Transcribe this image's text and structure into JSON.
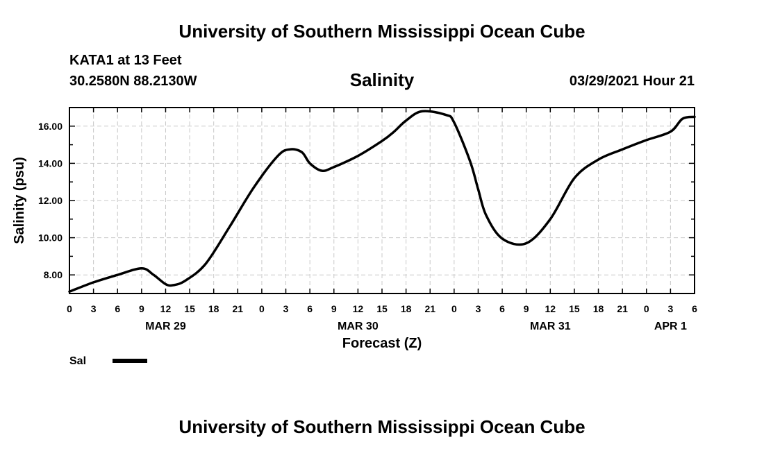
{
  "header": {
    "title": "University of Southern Mississippi Ocean Cube",
    "station": "KATA1 at 13 Feet",
    "coords": "30.2580N  88.2130W",
    "subtitle": "Salinity",
    "timestamp": "03/29/2021 Hour 21"
  },
  "footer": {
    "title": "University of Southern Mississippi Ocean Cube"
  },
  "colors": {
    "line": "#000000",
    "grid": "#c8c8c8",
    "axis": "#000000"
  },
  "chart_data": {
    "type": "line",
    "title": "Salinity",
    "xlabel": "Forecast (Z)",
    "ylabel": "Salinity (psu)",
    "xlim": [
      0,
      78
    ],
    "ylim": [
      7,
      17
    ],
    "x_ticks": [
      0,
      3,
      6,
      9,
      12,
      15,
      18,
      21,
      24,
      27,
      30,
      33,
      36,
      39,
      42,
      45,
      48,
      51,
      54,
      57,
      60,
      63,
      66,
      69,
      72,
      75,
      78
    ],
    "x_tick_labels": [
      "0",
      "3",
      "6",
      "9",
      "12",
      "15",
      "18",
      "21",
      "0",
      "3",
      "6",
      "9",
      "12",
      "15",
      "18",
      "21",
      "0",
      "3",
      "6",
      "9",
      "12",
      "15",
      "18",
      "21",
      "0",
      "3",
      "6"
    ],
    "y_ticks": [
      8,
      10,
      12,
      14,
      16
    ],
    "y_tick_labels": [
      "8.00",
      "10.00",
      "12.00",
      "14.00",
      "16.00"
    ],
    "date_labels": [
      {
        "label": "MAR 29",
        "x": 12
      },
      {
        "label": "MAR 30",
        "x": 36
      },
      {
        "label": "MAR 31",
        "x": 60
      },
      {
        "label": "APR 1",
        "x": 75
      }
    ],
    "grid": true,
    "series": [
      {
        "name": "Sal",
        "x": [
          0,
          3,
          6,
          9,
          10.5,
          12,
          13,
          14.5,
          17,
          20,
          23,
          26,
          27.5,
          29,
          30,
          31.5,
          33,
          36,
          39,
          40.5,
          42,
          44,
          47,
          48,
          50,
          51,
          52,
          54,
          57,
          60,
          63,
          66,
          69,
          72,
          75,
          76.5,
          78
        ],
        "y": [
          7.1,
          7.6,
          8.0,
          8.35,
          8.0,
          7.5,
          7.45,
          7.7,
          8.6,
          10.6,
          12.7,
          14.4,
          14.75,
          14.6,
          14.0,
          13.6,
          13.8,
          14.4,
          15.2,
          15.7,
          16.3,
          16.8,
          16.6,
          16.2,
          14.1,
          12.6,
          11.2,
          9.95,
          9.7,
          11.0,
          13.2,
          14.2,
          14.75,
          15.25,
          15.7,
          16.4,
          16.5
        ]
      }
    ],
    "legend": {
      "label": "Sal",
      "position": "bottom-left"
    }
  }
}
